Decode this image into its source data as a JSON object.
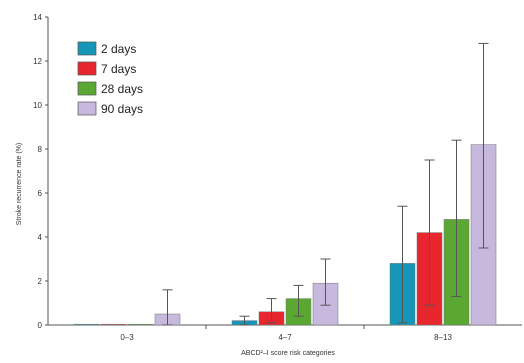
{
  "chart_data": {
    "type": "bar",
    "title": "",
    "xlabel": "ABCD²–I score risk categories",
    "ylabel": "Stroke recurrence rate (%)",
    "categories": [
      "0–3",
      "4–7",
      "8–13"
    ],
    "ylim": [
      0,
      14
    ],
    "yticks": [
      0,
      2,
      4,
      6,
      8,
      10,
      12,
      14
    ],
    "grid": false,
    "legend_position": "top-left",
    "series": [
      {
        "name": "2 days",
        "color": "#1596b8",
        "values": [
          0.0,
          0.2,
          2.8
        ],
        "err_low": [
          0.0,
          0.0,
          0.1
        ],
        "err_high": [
          0.0,
          0.4,
          5.4
        ]
      },
      {
        "name": "7 days",
        "color": "#e8262d",
        "values": [
          0.0,
          0.6,
          4.2
        ],
        "err_low": [
          0.0,
          0.1,
          0.9
        ],
        "err_high": [
          0.0,
          1.2,
          7.5
        ]
      },
      {
        "name": "28 days",
        "color": "#5aa832",
        "values": [
          0.0,
          1.2,
          4.8
        ],
        "err_low": [
          0.0,
          0.4,
          1.3
        ],
        "err_high": [
          0.0,
          1.8,
          8.4
        ]
      },
      {
        "name": "90 days",
        "color": "#c7b9dd",
        "values": [
          0.5,
          1.9,
          8.2
        ],
        "err_low": [
          0.0,
          0.9,
          3.5
        ],
        "err_high": [
          1.6,
          3.0,
          12.8
        ]
      }
    ]
  }
}
